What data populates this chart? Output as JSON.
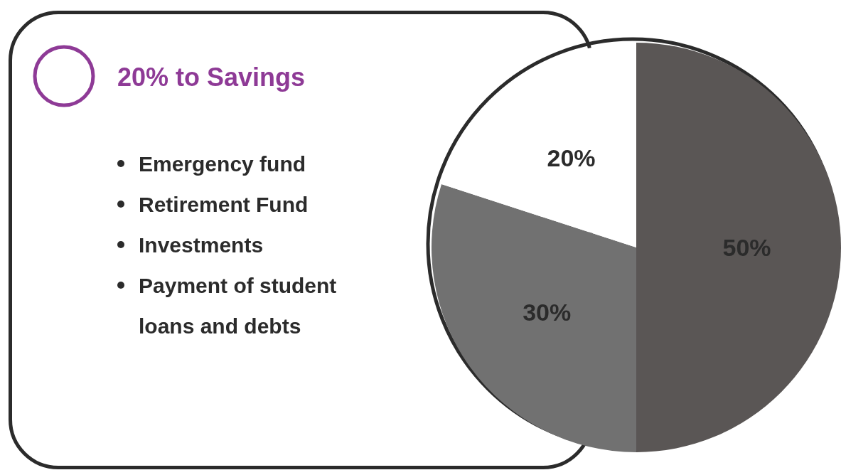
{
  "chart_data": {
    "type": "pie",
    "title": "20% to Savings",
    "categories": [
      null,
      null,
      null
    ],
    "values": [
      50,
      30,
      20
    ],
    "colors": [
      "#5a5655",
      "#717171",
      "#ffffff"
    ],
    "value_labels": [
      "50%",
      "30%",
      "20%"
    ],
    "legend": false,
    "annotations": [
      "Emergency fund",
      "Retirement Fund",
      "Investments",
      "Payment of student loans and debts"
    ]
  }
}
